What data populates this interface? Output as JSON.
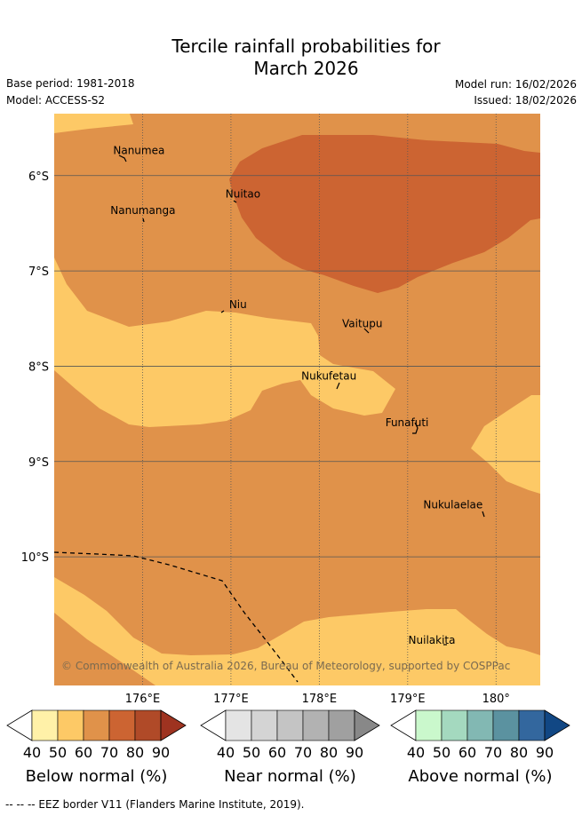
{
  "title": {
    "line1": "Tercile rainfall probabilities for",
    "line2": "March 2026"
  },
  "meta": {
    "base_period": "Base period: 1981-2018",
    "model": "Model: ACCESS-S2",
    "model_run": "Model run: 16/02/2026",
    "issued": "Issued: 18/02/2026"
  },
  "map": {
    "lon_range": [
      175.0,
      180.5
    ],
    "lat_range": [
      -11.35,
      -5.35
    ],
    "x_ticks": [
      {
        "lon": 176,
        "label": "176°E"
      },
      {
        "lon": 177,
        "label": "177°E"
      },
      {
        "lon": 178,
        "label": "178°E"
      },
      {
        "lon": 179,
        "label": "179°E"
      },
      {
        "lon": 180,
        "label": "180°"
      }
    ],
    "y_ticks": [
      {
        "lat": -6,
        "label": "6°S"
      },
      {
        "lat": -7,
        "label": "7°S"
      },
      {
        "lat": -8,
        "label": "8°S"
      },
      {
        "lat": -9,
        "label": "9°S"
      },
      {
        "lat": -10,
        "label": "10°S"
      }
    ],
    "places": [
      {
        "name": "Nanumea",
        "lon": 176.13,
        "lat": -5.66
      },
      {
        "name": "Nanumanga",
        "lon": 176.32,
        "lat": -6.29
      },
      {
        "name": "Nuitao",
        "lon": 177.32,
        "lat": -6.12
      },
      {
        "name": "Niu",
        "lon": 177.16,
        "lat": -7.28
      },
      {
        "name": "Vaitupu",
        "lon": 178.68,
        "lat": -7.48
      },
      {
        "name": "Nukufetau",
        "lon": 178.38,
        "lat": -8.03
      },
      {
        "name": "Funafuti",
        "lon": 179.2,
        "lat": -8.52
      },
      {
        "name": "Nukulaelae",
        "lon": 179.83,
        "lat": -9.38
      },
      {
        "name": "Nuilakita",
        "lon": 179.51,
        "lat": -10.8
      }
    ],
    "colors": {
      "background": "#e0924a",
      "dry_50_60": "#fdc966",
      "dry_70_80": "#cc6432",
      "grid": "#555555"
    },
    "copyright": "© Commonwealth of Australia 2026, Bureau of Meteorology, supported by COSPPac"
  },
  "colorbars": [
    {
      "title": "Below normal (%)",
      "ticks": [
        "40",
        "50",
        "60",
        "70",
        "80",
        "90"
      ],
      "colors": [
        "#fff1a8",
        "#fdc966",
        "#e0924a",
        "#cc6432",
        "#b04a28",
        "#9e3320"
      ]
    },
    {
      "title": "Near normal (%)",
      "ticks": [
        "40",
        "50",
        "60",
        "70",
        "80",
        "90"
      ],
      "colors": [
        "#e4e4e4",
        "#d4d4d4",
        "#c4c4c4",
        "#b2b2b2",
        "#a0a0a0",
        "#888888"
      ]
    },
    {
      "title": "Above normal (%)",
      "ticks": [
        "40",
        "50",
        "60",
        "70",
        "80",
        "90"
      ],
      "colors": [
        "#caf8cc",
        "#a4d9bf",
        "#82b8b3",
        "#5b92a0",
        "#33679e",
        "#114784"
      ]
    }
  ],
  "footer": "--  --  -- EEZ border V11 (Flanders Marine Institute, 2019)."
}
